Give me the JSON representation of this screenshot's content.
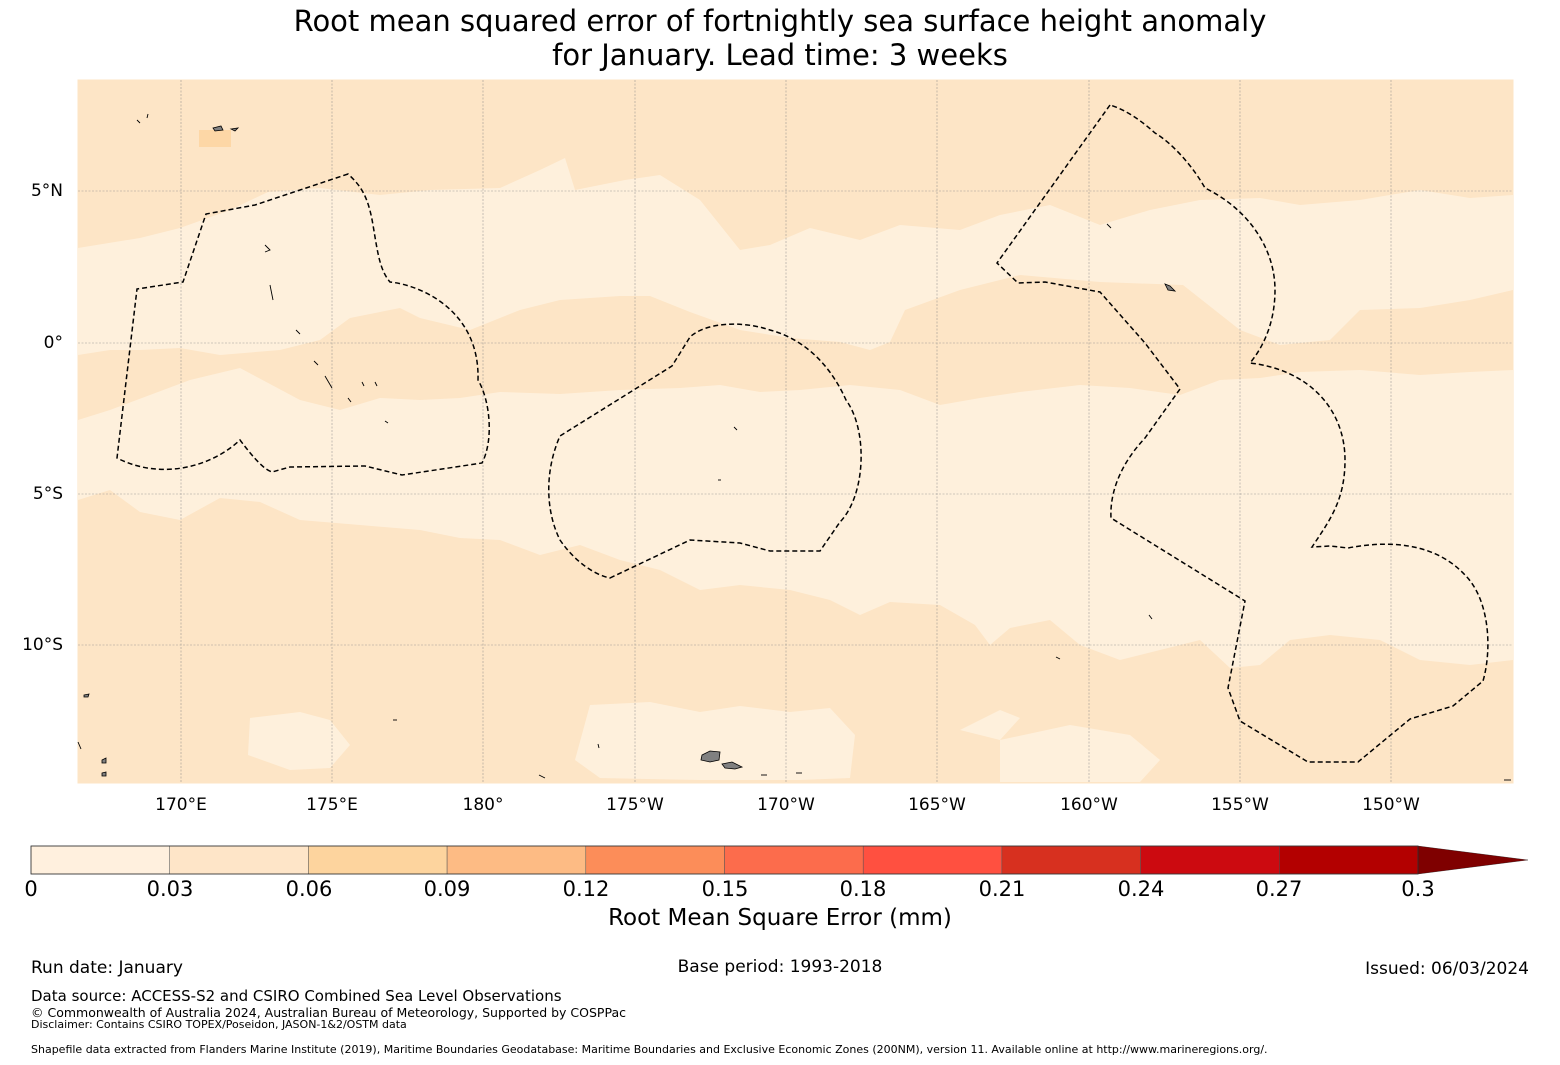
{
  "title": {
    "line1": "Root mean squared error of fortnightly sea surface height anomaly",
    "line2": "for January. Lead time: 3 weeks"
  },
  "map": {
    "lat_labels": [
      "5°N",
      "0°",
      "5°S",
      "10°S"
    ],
    "lon_labels": [
      "170°E",
      "175°E",
      "180°",
      "175°W",
      "170°W",
      "165°W",
      "160°W",
      "155°W",
      "150°W"
    ],
    "colors": {
      "band_0_003": "#fef0dc",
      "band_003_006": "#fde5c6",
      "land": "#808080",
      "grid": "#888888",
      "eez_line": "#000000"
    },
    "features": [
      "eez-boundaries",
      "islands"
    ]
  },
  "colorbar": {
    "ticks": [
      "0",
      "0.03",
      "0.06",
      "0.09",
      "0.12",
      "0.15",
      "0.18",
      "0.21",
      "0.24",
      "0.27",
      "0.3"
    ],
    "colors": [
      "#fff0de",
      "#fee5c8",
      "#fdd49e",
      "#fdbb84",
      "#fc8d59",
      "#fc6c4c",
      "#ff5040",
      "#d7301f",
      "#cc0a10",
      "#b30000",
      "#7f0000"
    ],
    "extend_color": "#7f0000",
    "label": "Root Mean Square Error (mm)"
  },
  "footer": {
    "run_date": "Run date: January",
    "base_period": "Base period: 1993-2018",
    "issued": "Issued: 06/03/2024",
    "data_source": "Data source: ACCESS-S2 and CSIRO Combined Sea Level Observations",
    "copyright": "© Commonwealth of Australia 2024, Australian Bureau of Meteorology, Supported by COSPPac",
    "disclaimer": "Disclaimer: Contains CSIRO TOPEX/Poseidon, JASON-1&2/OSTM data",
    "shapefile": "Shapefile data extracted from Flanders Marine Institute (2019), Maritime Boundaries Geodatabase: Maritime Boundaries and Exclusive Economic Zones (200NM), version 11. Available online at http://www.marineregions.org/."
  }
}
